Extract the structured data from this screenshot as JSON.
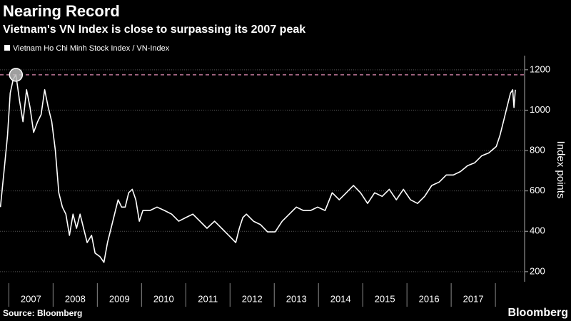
{
  "chart_data": {
    "type": "line",
    "title": "Nearing Record",
    "subtitle": "Vietnam's VN Index is close to surpassing its 2007 peak",
    "y_axis_label": "Index points",
    "source": "Source: Bloomberg",
    "brand": "Bloomberg",
    "x": [
      2006.81,
      2006.89,
      2006.97,
      2007.03,
      2007.1,
      2007.16,
      2007.24,
      2007.32,
      2007.4,
      2007.48,
      2007.56,
      2007.65,
      2007.73,
      2007.81,
      2007.89,
      2007.97,
      2008.05,
      2008.13,
      2008.21,
      2008.29,
      2008.37,
      2008.45,
      2008.53,
      2008.61,
      2008.69,
      2008.77,
      2008.87,
      2008.95,
      2009.06,
      2009.15,
      2009.23,
      2009.31,
      2009.39,
      2009.47,
      2009.55,
      2009.63,
      2009.71,
      2009.79,
      2009.87,
      2009.95,
      2010.03,
      2010.19,
      2010.35,
      2010.52,
      2010.68,
      2010.84,
      2011.0,
      2011.16,
      2011.32,
      2011.48,
      2011.65,
      2011.81,
      2011.97,
      2012.13,
      2012.21,
      2012.29,
      2012.37,
      2012.53,
      2012.69,
      2012.85,
      2013.02,
      2013.18,
      2013.34,
      2013.5,
      2013.66,
      2013.82,
      2013.98,
      2014.15,
      2014.31,
      2014.47,
      2014.63,
      2014.79,
      2014.95,
      2015.11,
      2015.27,
      2015.44,
      2015.6,
      2015.76,
      2015.92,
      2016.08,
      2016.24,
      2016.4,
      2016.56,
      2016.73,
      2016.89,
      2017.05,
      2017.21,
      2017.37,
      2017.53,
      2017.69,
      2017.85,
      2018.02,
      2018.1,
      2018.18,
      2018.26,
      2018.34,
      2018.39,
      2018.42,
      2018.45
    ],
    "series": [
      {
        "name": "Vietnam Ho Chi Minh Stock Index / VN-Index",
        "color": "#ffffff",
        "values": [
          520,
          696,
          873,
          1084,
          1154,
          1175,
          1049,
          943,
          1101,
          1013,
          890,
          943,
          978,
          1101,
          1013,
          943,
          802,
          591,
          520,
          485,
          380,
          485,
          415,
          485,
          415,
          344,
          380,
          292,
          274,
          246,
          344,
          415,
          485,
          556,
          520,
          520,
          591,
          608,
          556,
          450,
          503,
          503,
          520,
          503,
          485,
          450,
          468,
          485,
          450,
          415,
          450,
          415,
          380,
          344,
          415,
          468,
          485,
          450,
          433,
          397,
          397,
          450,
          485,
          520,
          503,
          503,
          520,
          503,
          591,
          556,
          591,
          627,
          591,
          538,
          591,
          573,
          608,
          556,
          608,
          556,
          538,
          573,
          627,
          644,
          679,
          679,
          696,
          725,
          739,
          774,
          788,
          820,
          873,
          943,
          1013,
          1084,
          1101,
          1013,
          1101
        ]
      }
    ],
    "reference_line": 1175,
    "peak_marker": {
      "x": 2007.16,
      "value": 1175
    },
    "xlim": [
      2006.8,
      2018.66
    ],
    "xticks": [
      {
        "value": 2007.5,
        "label": "2007"
      },
      {
        "value": 2008.5,
        "label": "2008"
      },
      {
        "value": 2009.5,
        "label": "2009"
      },
      {
        "value": 2010.5,
        "label": "2010"
      },
      {
        "value": 2011.5,
        "label": "2011"
      },
      {
        "value": 2012.5,
        "label": "2012"
      },
      {
        "value": 2013.5,
        "label": "2013"
      },
      {
        "value": 2014.5,
        "label": "2014"
      },
      {
        "value": 2015.5,
        "label": "2015"
      },
      {
        "value": 2016.5,
        "label": "2016"
      },
      {
        "value": 2017.5,
        "label": "2017"
      }
    ],
    "ylim": [
      150,
      1270
    ],
    "yticks": [
      200,
      400,
      600,
      800,
      1000,
      1200
    ],
    "grid": true
  }
}
